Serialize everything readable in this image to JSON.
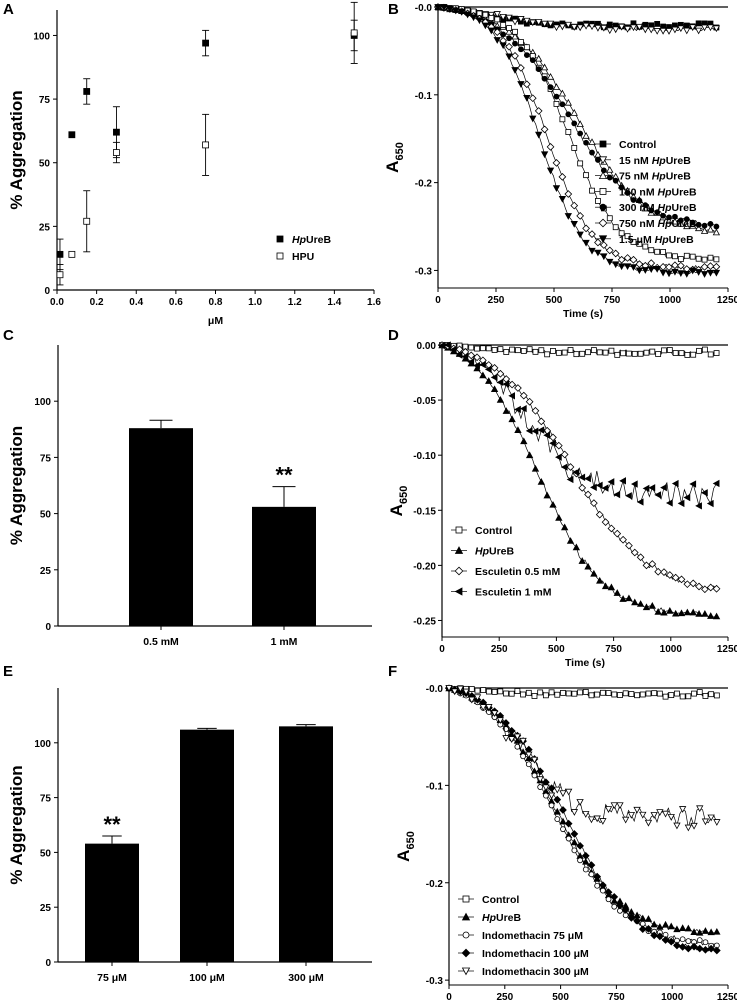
{
  "chart_data": [
    {
      "panel": "A",
      "type": "scatter",
      "xlabel": "μM",
      "ylabel": "% Aggregation",
      "xlim": [
        0,
        1.6
      ],
      "ylim": [
        0,
        110
      ],
      "xticks": [
        "0.0",
        "0.2",
        "0.4",
        "0.6",
        "0.8",
        "1.0",
        "1.2",
        "1.4",
        "1.6"
      ],
      "yticks": [
        "0",
        "25",
        "50",
        "75",
        "100"
      ],
      "legend_position": "bottom-right",
      "series": [
        {
          "name": "HpUreB",
          "legend_plain": "",
          "legend_italic": "Hp",
          "legend_rest": "UreB",
          "marker": "filled-square",
          "points": [
            [
              0.015,
              14,
              6
            ],
            [
              0.075,
              61,
              0
            ],
            [
              0.15,
              78,
              5
            ],
            [
              0.3,
              62,
              10
            ],
            [
              0.75,
              97,
              5
            ],
            [
              1.5,
              100,
              6
            ]
          ]
        },
        {
          "name": "HPU",
          "legend_plain": "HPU",
          "legend_italic": "",
          "legend_rest": "",
          "marker": "open-square",
          "points": [
            [
              0.015,
              6,
              4
            ],
            [
              0.075,
              14,
              0
            ],
            [
              0.15,
              27,
              12
            ],
            [
              0.3,
              54,
              4
            ],
            [
              0.75,
              57,
              12
            ],
            [
              1.5,
              101,
              12
            ]
          ]
        }
      ]
    },
    {
      "panel": "B",
      "type": "line",
      "xlabel": "Time (s)",
      "ylabel": "A",
      "ylabel_sub": "650",
      "xlim": [
        0,
        1250
      ],
      "ylim": [
        -0.32,
        0.0
      ],
      "xticks": [
        "0",
        "250",
        "500",
        "750",
        "1000",
        "1250"
      ],
      "yticks": [
        "-0.0",
        "-0.1",
        "-0.2",
        "-0.3"
      ],
      "legend_position": "right",
      "series": [
        {
          "name": "Control",
          "legend_plain": "Control",
          "legend_italic": "",
          "legend_rest": "",
          "marker": "filled-square",
          "final": -0.025,
          "t50": 200,
          "k": 120
        },
        {
          "name": "15 nM HpUreB",
          "legend_plain": "15 nM ",
          "legend_italic": "Hp",
          "legend_rest": "UreB",
          "marker": "open-tri-down",
          "final": -0.03,
          "t50": 250,
          "k": 150
        },
        {
          "name": "75 nM HpUreB",
          "legend_plain": "75 nM ",
          "legend_italic": "Hp",
          "legend_rest": "UreB",
          "marker": "open-tri-up",
          "final": -0.265,
          "t50": 600,
          "k": 150
        },
        {
          "name": "150 nM HpUreB",
          "legend_plain": "150 nM ",
          "legend_italic": "Hp",
          "legend_rest": "UreB",
          "marker": "open-square",
          "final": -0.29,
          "t50": 560,
          "k": 110
        },
        {
          "name": "300 nM HpUreB",
          "legend_plain": "300 nM ",
          "legend_italic": "Hp",
          "legend_rest": "UreB",
          "marker": "filled-circle",
          "final": -0.258,
          "t50": 560,
          "k": 150
        },
        {
          "name": "750 nM HpUreB",
          "legend_plain": "750 nM ",
          "legend_italic": "Hp",
          "legend_rest": "UreB",
          "marker": "open-diamond",
          "final": -0.3,
          "t50": 470,
          "k": 100
        },
        {
          "name": "1.5 μM HpUreB",
          "legend_plain": "1.5 μM ",
          "legend_italic": "Hp",
          "legend_rest": "UreB",
          "marker": "filled-tri-down",
          "final": -0.305,
          "t50": 440,
          "k": 95
        }
      ]
    },
    {
      "panel": "C",
      "type": "bar",
      "ylabel": "% Aggregation",
      "ylim": [
        0,
        125
      ],
      "yticks": [
        "0",
        "25",
        "50",
        "75",
        "100"
      ],
      "categories": [
        "0.5 mM",
        "1 mM"
      ],
      "values": [
        88,
        53
      ],
      "errors": [
        3.5,
        9
      ],
      "annotations": [
        "",
        "**"
      ]
    },
    {
      "panel": "D",
      "type": "line",
      "xlabel": "Time (s)",
      "ylabel": "A",
      "ylabel_sub": "650",
      "xlim": [
        0,
        1250
      ],
      "ylim": [
        -0.265,
        0.0
      ],
      "xticks": [
        "0",
        "250",
        "500",
        "750",
        "1000",
        "1250"
      ],
      "yticks": [
        "0.00",
        "-0.05",
        "-0.10",
        "-0.15",
        "-0.20",
        "-0.25"
      ],
      "legend_position": "bottom-left",
      "series": [
        {
          "name": "Control",
          "legend_plain": "Control",
          "legend_italic": "",
          "legend_rest": "",
          "marker": "open-square",
          "final": -0.008,
          "t50": 150,
          "k": 100
        },
        {
          "name": "HpUreB",
          "legend_plain": "",
          "legend_italic": "Hp",
          "legend_rest": "UreB",
          "marker": "filled-tri-up",
          "final": -0.258,
          "t50": 420,
          "k": 140
        },
        {
          "name": "Esculetin 0.5 mM",
          "legend_plain": "Esculetin 0.5 mM",
          "legend_italic": "",
          "legend_rest": "",
          "marker": "open-diamond",
          "final": -0.235,
          "t50": 560,
          "k": 170
        },
        {
          "name": "Esculetin 1 mM",
          "legend_plain": "Esculetin 1 mM",
          "legend_italic": "",
          "legend_rest": "",
          "marker": "filled-tri-left",
          "final": -0.145,
          "t50": 360,
          "k": 130
        }
      ]
    },
    {
      "panel": "E",
      "type": "bar",
      "ylabel": "% Aggregation",
      "ylim": [
        0,
        125
      ],
      "yticks": [
        "0",
        "25",
        "50",
        "75",
        "100"
      ],
      "categories": [
        "75 μM",
        "100 μM",
        "300 μM"
      ],
      "values": [
        54,
        106,
        107.5
      ],
      "errors": [
        3.5,
        0.6,
        0.8
      ],
      "annotations": [
        "**",
        "",
        ""
      ]
    },
    {
      "panel": "F",
      "type": "line",
      "xlabel": "Time (s)",
      "ylabel": "A",
      "ylabel_sub": "650",
      "xlim": [
        0,
        1250
      ],
      "ylim": [
        -0.305,
        0.0
      ],
      "xticks": [
        "0",
        "250",
        "500",
        "750",
        "1000",
        "1250"
      ],
      "yticks": [
        "-0.0",
        "-0.1",
        "-0.2",
        "-0.3"
      ],
      "legend_position": "bottom-left",
      "series": [
        {
          "name": "Control",
          "legend_plain": "Control",
          "legend_italic": "",
          "legend_rest": "",
          "marker": "open-square",
          "final": -0.008,
          "t50": 150,
          "k": 100
        },
        {
          "name": "HpUreB",
          "legend_plain": "",
          "legend_italic": "Hp",
          "legend_rest": "UreB",
          "marker": "filled-tri-up",
          "final": -0.265,
          "t50": 470,
          "k": 150
        },
        {
          "name": "Indomethacin 75 μM",
          "legend_plain": "Indomethacin 75 μM",
          "legend_italic": "",
          "legend_rest": "",
          "marker": "open-circle",
          "final": -0.28,
          "t50": 470,
          "k": 160
        },
        {
          "name": "Indomethacin 100 μM",
          "legend_plain": "Indomethacin 100 μM",
          "legend_italic": "",
          "legend_rest": "",
          "marker": "filled-diamond",
          "final": -0.285,
          "t50": 520,
          "k": 160
        },
        {
          "name": "Indomethacin 300 μM",
          "legend_plain": "Indomethacin 300 μM",
          "legend_italic": "",
          "legend_rest": "",
          "marker": "open-tri-down",
          "final": -0.14,
          "t50": 330,
          "k": 110
        }
      ]
    }
  ]
}
